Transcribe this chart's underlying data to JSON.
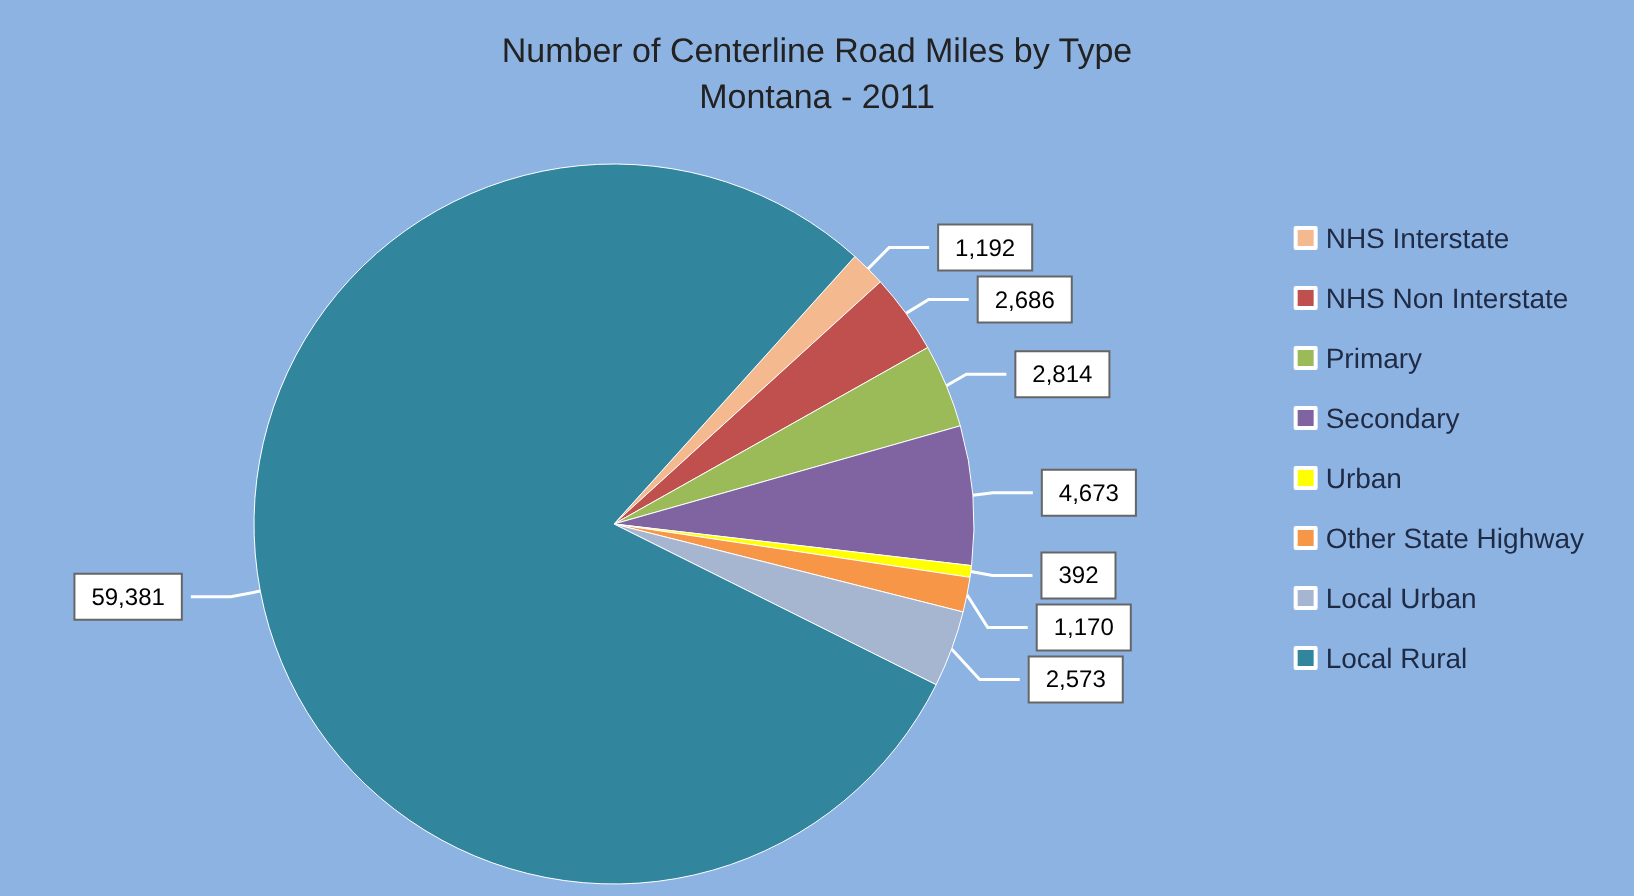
{
  "chart_data": {
    "type": "pie",
    "title": "Number of Centerline Road Miles by Type",
    "subtitle": "Montana - 2011",
    "categories": [
      "NHS Interstate",
      "NHS Non Interstate",
      "Primary",
      "Secondary",
      "Urban",
      "Other State Highway",
      "Local Urban",
      "Local Rural"
    ],
    "values": [
      1192,
      2686,
      2814,
      4673,
      392,
      1170,
      2573,
      59381
    ],
    "value_labels": [
      "1,192",
      "2,686",
      "2,814",
      "4,673",
      "392",
      "1,170",
      "2,573",
      "59,381"
    ],
    "colors": [
      "#f5b98f",
      "#c0504d",
      "#9bbb59",
      "#8064a2",
      "#ffff00",
      "#f79646",
      "#a6b6d0",
      "#31859c"
    ],
    "legend": "right"
  }
}
